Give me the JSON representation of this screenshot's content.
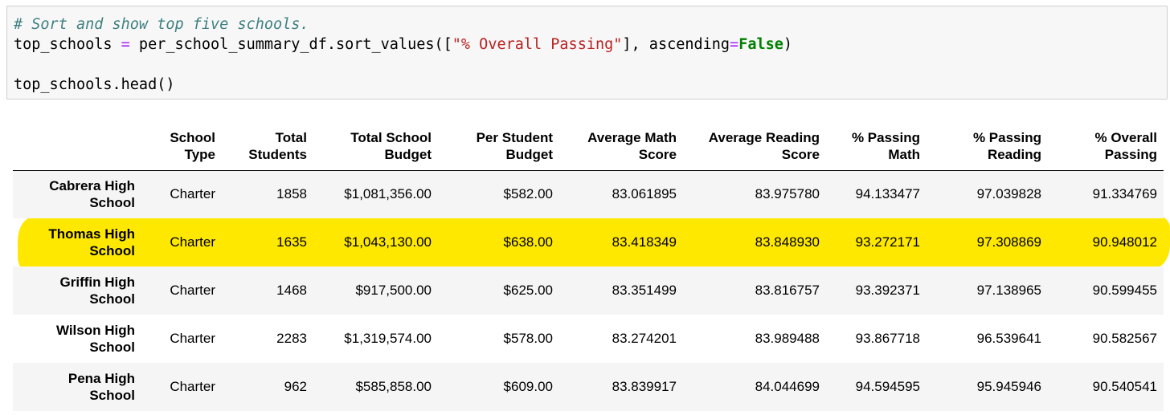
{
  "code": {
    "comment": "# Sort and show top five schools.",
    "line2_var": "top_schools ",
    "line2_eq": "=",
    "line2_mid": " per_school_summary_df.sort_values([",
    "line2_str": "\"% Overall Passing\"",
    "line2_after": "], ascending",
    "line2_eq2": "=",
    "line2_kw": "False",
    "line2_end": ")",
    "line3": "",
    "line4": "top_schools.head()"
  },
  "table": {
    "columns": [
      [
        "School",
        "Type"
      ],
      [
        "Total",
        "Students"
      ],
      [
        "Total School",
        "Budget"
      ],
      [
        "Per Student",
        "Budget"
      ],
      [
        "Average Math",
        "Score"
      ],
      [
        "Average Reading",
        "Score"
      ],
      [
        "% Passing",
        "Math"
      ],
      [
        "% Passing",
        "Reading"
      ],
      [
        "% Overall",
        "Passing"
      ]
    ],
    "rows": [
      {
        "name": [
          "Cabrera High",
          "School"
        ],
        "cells": [
          "Charter",
          "1858",
          "$1,081,356.00",
          "$582.00",
          "83.061895",
          "83.975780",
          "94.133477",
          "97.039828",
          "91.334769"
        ]
      },
      {
        "name": [
          "Thomas High",
          "School"
        ],
        "cells": [
          "Charter",
          "1635",
          "$1,043,130.00",
          "$638.00",
          "83.418349",
          "83.848930",
          "93.272171",
          "97.308869",
          "90.948012"
        ]
      },
      {
        "name": [
          "Griffin High",
          "School"
        ],
        "cells": [
          "Charter",
          "1468",
          "$917,500.00",
          "$625.00",
          "83.351499",
          "83.816757",
          "93.392371",
          "97.138965",
          "90.599455"
        ]
      },
      {
        "name": [
          "Wilson High",
          "School"
        ],
        "cells": [
          "Charter",
          "2283",
          "$1,319,574.00",
          "$578.00",
          "83.274201",
          "83.989488",
          "93.867718",
          "96.539641",
          "90.582567"
        ]
      },
      {
        "name": [
          "Pena High",
          "School"
        ],
        "cells": [
          "Charter",
          "962",
          "$585,858.00",
          "$609.00",
          "83.839917",
          "84.044699",
          "94.594595",
          "95.945946",
          "90.540541"
        ]
      }
    ]
  },
  "colors": {
    "highlight": "#ffe800",
    "comment": "#408080",
    "string": "#ba2121",
    "keyword": "#008000",
    "operator": "#aa22ff",
    "code_bg": "#f7f7f7",
    "stripe": "#f5f5f5"
  }
}
